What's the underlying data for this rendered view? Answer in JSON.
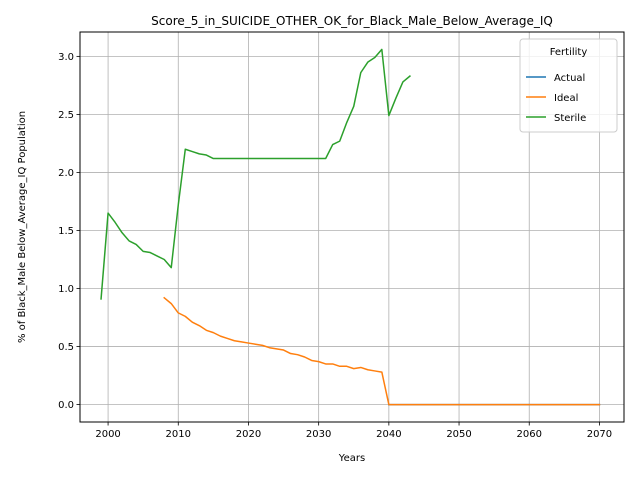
{
  "chart_data": {
    "type": "line",
    "title": "Score_5_in_SUICIDE_OTHER_OK_for_Black_Male_Below_Average_IQ",
    "xlabel": "Years",
    "ylabel": "% of Black_Male Below_Average_IQ Population",
    "xlim": [
      1996,
      2073.5
    ],
    "ylim": [
      -0.15,
      3.21
    ],
    "x_ticks": [
      2000,
      2010,
      2020,
      2030,
      2040,
      2050,
      2060,
      2070
    ],
    "y_ticks": [
      0.0,
      0.5,
      1.0,
      1.5,
      2.0,
      2.5,
      3.0
    ],
    "x_tick_labels": [
      "2000",
      "2010",
      "2020",
      "2030",
      "2040",
      "2050",
      "2060",
      "2070"
    ],
    "y_tick_labels": [
      "0.0",
      "0.5",
      "1.0",
      "1.5",
      "2.0",
      "2.5",
      "3.0"
    ],
    "grid": true,
    "legend": {
      "title": "Fertility",
      "placement": "top-right"
    },
    "series": [
      {
        "name": "Actual",
        "color": "#1f77b4",
        "points": [
          [
            2040,
            0.0
          ],
          [
            2045,
            0.0
          ],
          [
            2050,
            0.0
          ],
          [
            2055,
            0.0
          ],
          [
            2060,
            0.0
          ],
          [
            2065,
            0.0
          ],
          [
            2070,
            0.0
          ]
        ]
      },
      {
        "name": "Ideal",
        "color": "#ff7f0e",
        "points": [
          [
            2008,
            0.92
          ],
          [
            2009,
            0.87
          ],
          [
            2010,
            0.79
          ],
          [
            2011,
            0.76
          ],
          [
            2012,
            0.71
          ],
          [
            2013,
            0.68
          ],
          [
            2014,
            0.64
          ],
          [
            2015,
            0.62
          ],
          [
            2016,
            0.59
          ],
          [
            2017,
            0.57
          ],
          [
            2018,
            0.55
          ],
          [
            2019,
            0.54
          ],
          [
            2020,
            0.53
          ],
          [
            2021,
            0.52
          ],
          [
            2022,
            0.51
          ],
          [
            2023,
            0.49
          ],
          [
            2024,
            0.48
          ],
          [
            2025,
            0.47
          ],
          [
            2026,
            0.44
          ],
          [
            2027,
            0.43
          ],
          [
            2028,
            0.41
          ],
          [
            2029,
            0.38
          ],
          [
            2030,
            0.37
          ],
          [
            2031,
            0.35
          ],
          [
            2032,
            0.35
          ],
          [
            2033,
            0.33
          ],
          [
            2034,
            0.33
          ],
          [
            2035,
            0.31
          ],
          [
            2036,
            0.32
          ],
          [
            2037,
            0.3
          ],
          [
            2038,
            0.29
          ],
          [
            2039,
            0.28
          ],
          [
            2040,
            0.0
          ],
          [
            2041,
            0.0
          ],
          [
            2045,
            0.0
          ],
          [
            2050,
            0.0
          ],
          [
            2055,
            0.0
          ],
          [
            2060,
            0.0
          ],
          [
            2065,
            0.0
          ],
          [
            2070,
            0.0
          ]
        ]
      },
      {
        "name": "Sterile",
        "color": "#2ca02c",
        "points": [
          [
            1999,
            0.91
          ],
          [
            2000,
            1.65
          ],
          [
            2001,
            1.57
          ],
          [
            2002,
            1.48
          ],
          [
            2003,
            1.41
          ],
          [
            2004,
            1.38
          ],
          [
            2005,
            1.32
          ],
          [
            2006,
            1.31
          ],
          [
            2007,
            1.28
          ],
          [
            2008,
            1.25
          ],
          [
            2009,
            1.18
          ],
          [
            2010,
            1.72
          ],
          [
            2011,
            2.2
          ],
          [
            2012,
            2.18
          ],
          [
            2013,
            2.16
          ],
          [
            2014,
            2.15
          ],
          [
            2015,
            2.12
          ],
          [
            2016,
            2.12
          ],
          [
            2017,
            2.12
          ],
          [
            2018,
            2.12
          ],
          [
            2019,
            2.12
          ],
          [
            2020,
            2.12
          ],
          [
            2021,
            2.12
          ],
          [
            2022,
            2.12
          ],
          [
            2023,
            2.12
          ],
          [
            2024,
            2.12
          ],
          [
            2025,
            2.12
          ],
          [
            2026,
            2.12
          ],
          [
            2027,
            2.12
          ],
          [
            2028,
            2.12
          ],
          [
            2029,
            2.12
          ],
          [
            2030,
            2.12
          ],
          [
            2031,
            2.12
          ],
          [
            2032,
            2.24
          ],
          [
            2033,
            2.27
          ],
          [
            2034,
            2.43
          ],
          [
            2035,
            2.57
          ],
          [
            2036,
            2.86
          ],
          [
            2037,
            2.95
          ],
          [
            2038,
            2.99
          ],
          [
            2039,
            3.06
          ],
          [
            2040,
            2.49
          ],
          [
            2041,
            2.64
          ],
          [
            2042,
            2.78
          ],
          [
            2043,
            2.83
          ]
        ]
      }
    ]
  }
}
